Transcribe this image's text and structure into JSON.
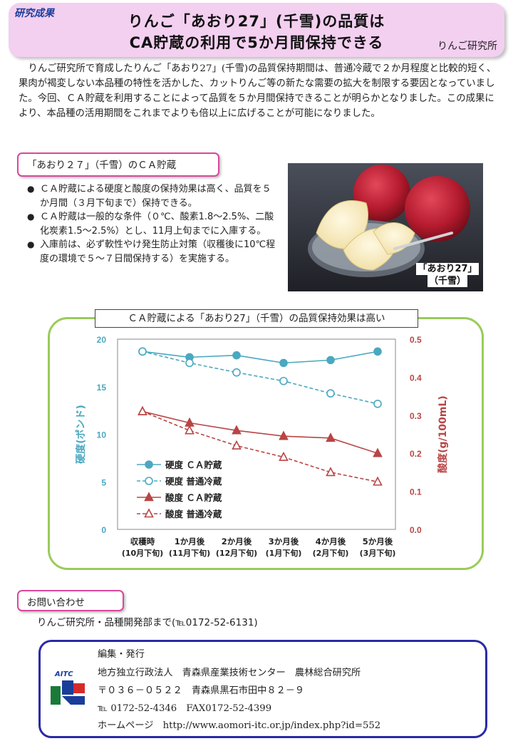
{
  "header": {
    "tag": "研究成果",
    "title_line1": "りんご「あおり27」(千雪)の品質は",
    "title_line2": "CA貯蔵の利用で5か月間保持できる",
    "org": "りんご研究所"
  },
  "intro": "りんご研究所で育成したりんご「あおり27」(千雪)の品質保持期間は、普通冷蔵で２か月程度と比較的短く、果肉が褐変しない本品種の特性を活かした、カットりんご等の新たな需要の拡大を制限する要因となっていました。今回、ＣＡ貯蔵を利用することによって品質を５か月間保持できることが明らかとなりました。この成果により、本品種の活用期間をこれまでよりも倍以上に広げることが可能になりました。",
  "section1": {
    "title": "「あおり２７」（千雪）のＣＡ貯蔵",
    "bullets": [
      "ＣＡ貯蔵による硬度と酸度の保持効果は高く、品質を５か月間（３月下旬まで）保持できる。",
      "ＣＡ貯蔵は一般的な条件（０℃、酸素1.8～2.5%、二酸化炭素1.5～2.5%）とし、11月上旬までに入庫する。",
      "入庫前は、必ず軟性やけ発生防止対策（収穫後に10℃程度の環境で５～７日間保持する）を実施する。"
    ],
    "photo_caption_line1": "「あおり27」",
    "photo_caption_line2": "（千雪）"
  },
  "chart_box_title": "ＣＡ貯蔵による「あおり27」（千雪）の品質保持効果は高い",
  "chart_data": {
    "type": "line",
    "categories": [
      "収穫時",
      "1か月後",
      "2か月後",
      "3か月後",
      "4か月後",
      "5か月後"
    ],
    "category_sublabels": [
      "(10月下旬)",
      "(11月下旬)",
      "(12月下旬)",
      "(1月下旬)",
      "(2月下旬)",
      "(3月下旬)"
    ],
    "ylabel": "硬度(ポンド)",
    "y2label": "酸度(g/100mL)",
    "ylim": [
      0,
      20
    ],
    "y2lim": [
      0.0,
      0.5
    ],
    "yticks": [
      "0",
      "5",
      "10",
      "15",
      "20"
    ],
    "y2ticks": [
      "0.0",
      "0.1",
      "0.2",
      "0.3",
      "0.4",
      "0.5"
    ],
    "series": [
      {
        "name": "硬度 ＣＡ貯蔵",
        "axis": "left",
        "values": [
          18.7,
          18.1,
          18.3,
          17.5,
          17.8,
          18.7
        ],
        "color": "#4aa8c0",
        "marker": "circle",
        "filled": true,
        "dashed": false
      },
      {
        "name": "硬度 普通冷蔵",
        "axis": "left",
        "values": [
          18.7,
          17.5,
          16.5,
          15.6,
          14.3,
          13.2
        ],
        "color": "#4aa8c0",
        "marker": "circle",
        "filled": false,
        "dashed": true
      },
      {
        "name": "酸度 ＣＡ貯蔵",
        "axis": "right",
        "values": [
          0.31,
          0.28,
          0.26,
          0.245,
          0.24,
          0.2
        ],
        "color": "#b94545",
        "marker": "triangle",
        "filled": true,
        "dashed": false
      },
      {
        "name": "酸度 普通冷蔵",
        "axis": "right",
        "values": [
          0.31,
          0.26,
          0.22,
          0.19,
          0.15,
          0.125
        ],
        "color": "#b94545",
        "marker": "triangle",
        "filled": false,
        "dashed": true
      }
    ],
    "legend_position": "lower-left"
  },
  "contact": {
    "title": "お問い合わせ",
    "text": "りんご研究所・品種開発部まで(℡0172-52-6131)"
  },
  "footer": {
    "logo_text": "AITC",
    "line1": "編集・発行",
    "line2": "地方独立行政法人　青森県産業技術センター　農林総合研究所",
    "line3": "〒０３６－０５２２　青森県黒石市田中８２－９",
    "line4": "℡ 0172-52-4346　FAX0172-52-4399",
    "line5": "ホームページ　http://www.aomori-itc.or.jp/index.php?id=552"
  }
}
